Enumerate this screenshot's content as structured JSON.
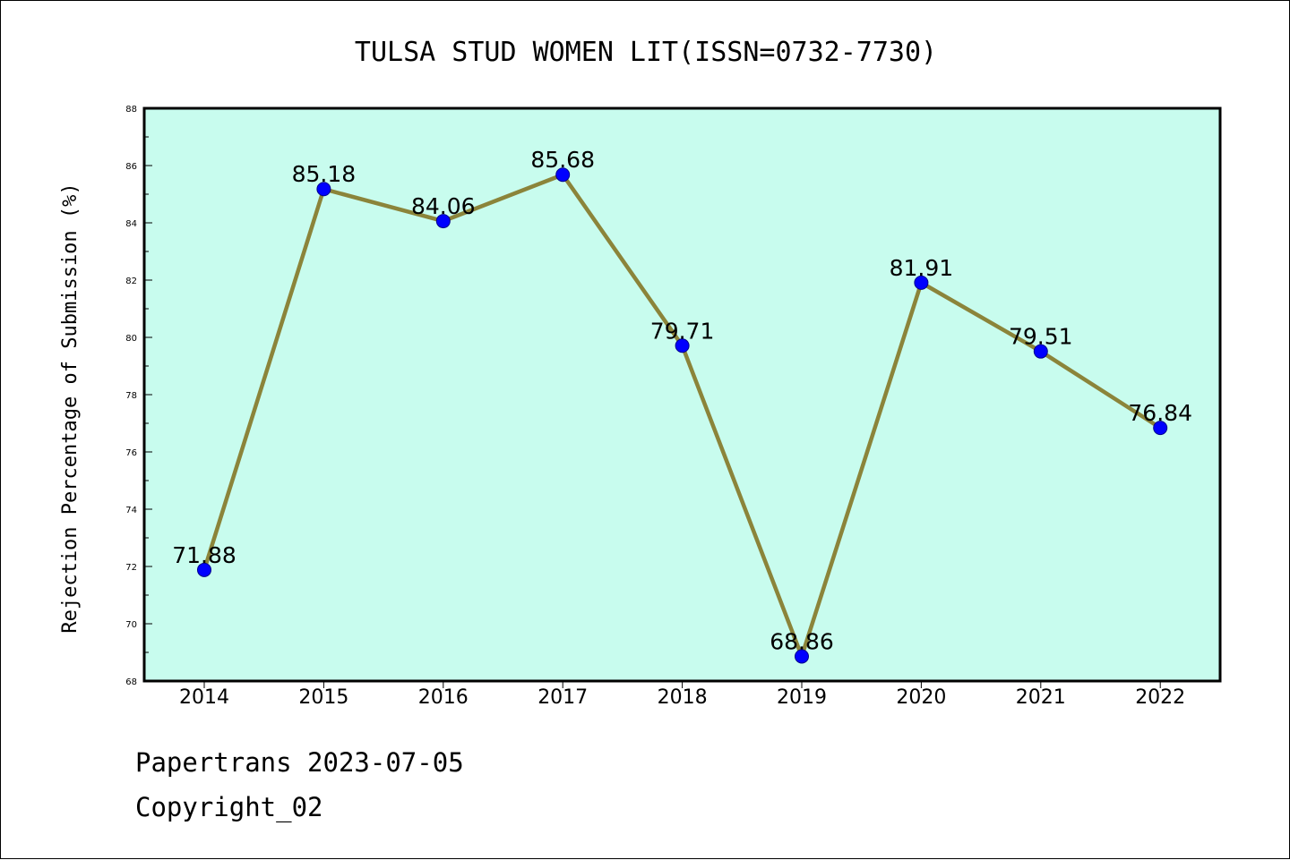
{
  "chart_data": {
    "type": "line",
    "title": "TULSA STUD WOMEN LIT(ISSN=0732-7730)",
    "ylabel": "Rejection Percentage of Submission (%)",
    "xlabel": "",
    "categories": [
      "2014",
      "2015",
      "2016",
      "2017",
      "2018",
      "2019",
      "2020",
      "2021",
      "2022"
    ],
    "values": [
      71.88,
      85.18,
      84.06,
      85.68,
      79.71,
      68.86,
      81.91,
      79.51,
      76.84
    ],
    "value_labels": [
      "71.88",
      "85.18",
      "84.06",
      "85.68",
      "79.71",
      "68.86",
      "81.91",
      "79.51",
      "76.84"
    ],
    "ylim": [
      68,
      88
    ],
    "yticks": [
      68,
      70,
      72,
      74,
      76,
      78,
      80,
      82,
      84,
      86,
      88
    ],
    "grid": false,
    "plot_background": "#c8fcee",
    "line_color": "#8b843a",
    "marker_color": "#0000ff"
  },
  "footer": {
    "line1": "Papertrans 2023-07-05",
    "line2": "Copyright_02"
  }
}
